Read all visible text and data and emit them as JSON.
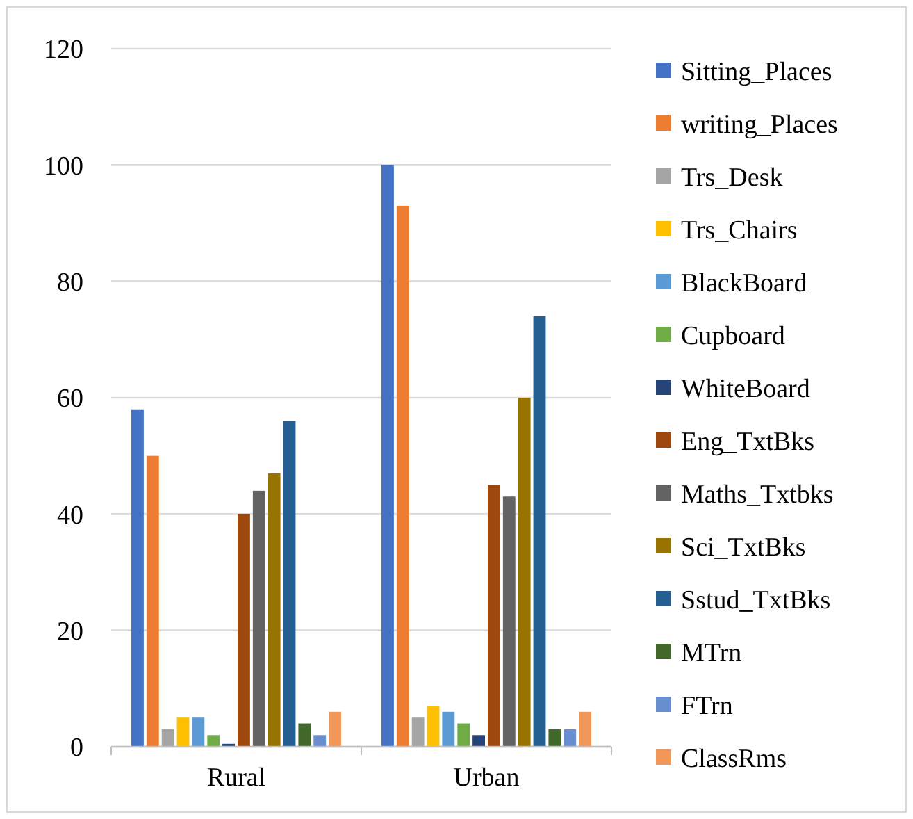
{
  "chart_data": {
    "type": "bar",
    "categories": [
      "Rural",
      "Urban"
    ],
    "ylim": [
      0,
      120
    ],
    "yticks": [
      0,
      20,
      40,
      60,
      80,
      100,
      120
    ],
    "grid": "y",
    "legend": "right",
    "series": [
      {
        "name": "Sitting_Places",
        "color": "#4472c4",
        "values": [
          58,
          100
        ]
      },
      {
        "name": "writing_Places",
        "color": "#ed7d31",
        "values": [
          50,
          93
        ]
      },
      {
        "name": "Trs_Desk",
        "color": "#a5a5a5",
        "values": [
          3,
          5
        ]
      },
      {
        "name": "Trs_Chairs",
        "color": "#ffc000",
        "values": [
          5,
          7
        ]
      },
      {
        "name": "BlackBoard",
        "color": "#5b9bd5",
        "values": [
          5,
          6
        ]
      },
      {
        "name": "Cupboard",
        "color": "#70ad47",
        "values": [
          2,
          4
        ]
      },
      {
        "name": "WhiteBoard",
        "color": "#264478",
        "values": [
          0.5,
          2
        ]
      },
      {
        "name": "Eng_TxtBks",
        "color": "#9e480e",
        "values": [
          40,
          45
        ]
      },
      {
        "name": "Maths_Txtbks",
        "color": "#636363",
        "values": [
          44,
          43
        ]
      },
      {
        "name": "Sci_TxtBks",
        "color": "#997300",
        "values": [
          47,
          60
        ]
      },
      {
        "name": "Sstud_TxtBks",
        "color": "#255e91",
        "values": [
          56,
          74
        ]
      },
      {
        "name": "MTrn",
        "color": "#43682b",
        "values": [
          4,
          3
        ]
      },
      {
        "name": "FTrn",
        "color": "#698ed0",
        "values": [
          2,
          3
        ]
      },
      {
        "name": "ClassRms",
        "color": "#f1975a",
        "values": [
          6,
          6
        ]
      }
    ]
  }
}
